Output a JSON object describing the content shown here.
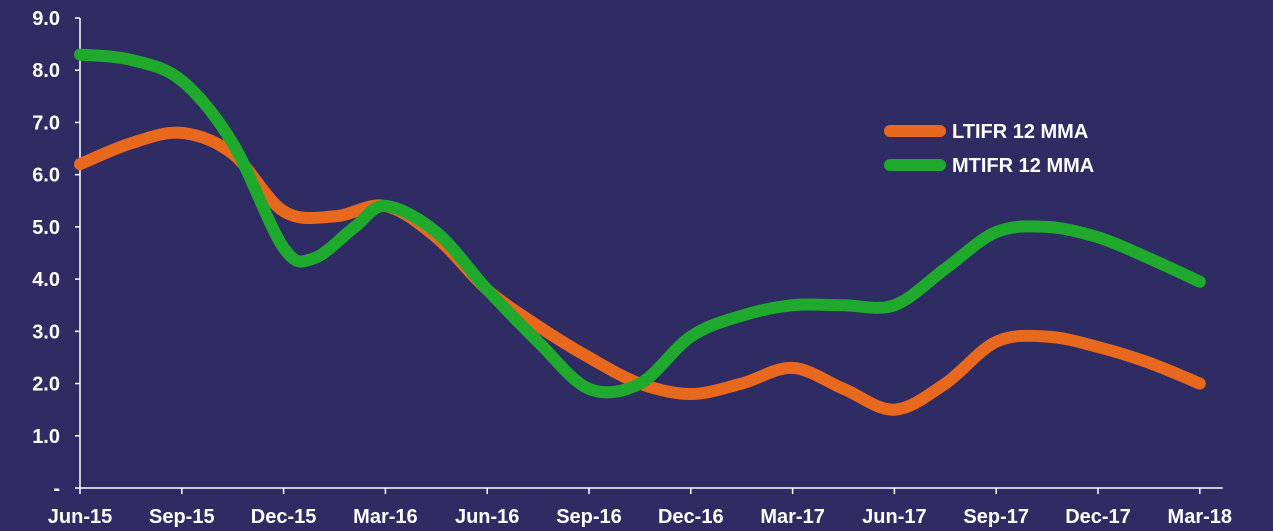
{
  "chart_data": {
    "type": "line",
    "title": "",
    "xlabel": "",
    "ylabel": "",
    "categories": [
      "Jun-15",
      "Sep-15",
      "Dec-15",
      "Mar-16",
      "Jun-16",
      "Sep-16",
      "Dec-16",
      "Mar-17",
      "Jun-17",
      "Sep-17",
      "Dec-17",
      "Mar-18"
    ],
    "y_ticks": [
      "-",
      "1.0",
      "2.0",
      "3.0",
      "4.0",
      "5.0",
      "6.0",
      "7.0",
      "8.0",
      "9.0"
    ],
    "ylim": [
      0,
      9
    ],
    "grid": false,
    "legend_position": "right",
    "series": [
      {
        "name": "LTIFR 12 MMA",
        "color": "#e8691e",
        "points": [
          [
            0,
            6.2
          ],
          [
            0.5,
            6.6
          ],
          [
            1.0,
            6.8
          ],
          [
            1.5,
            6.4
          ],
          [
            2.0,
            5.3
          ],
          [
            2.5,
            5.2
          ],
          [
            3.0,
            5.4
          ],
          [
            3.5,
            4.8
          ],
          [
            4.0,
            3.8
          ],
          [
            4.5,
            3.1
          ],
          [
            5.0,
            2.5
          ],
          [
            5.5,
            2.0
          ],
          [
            6.0,
            1.8
          ],
          [
            6.5,
            2.0
          ],
          [
            7.0,
            2.3
          ],
          [
            7.5,
            1.9
          ],
          [
            8.0,
            1.5
          ],
          [
            8.5,
            2.0
          ],
          [
            9.0,
            2.8
          ],
          [
            9.5,
            2.9
          ],
          [
            10.0,
            2.7
          ],
          [
            10.5,
            2.4
          ],
          [
            11.0,
            2.0
          ]
        ]
      },
      {
        "name": "MTIFR 12 MMA",
        "color": "#1faa2e",
        "points": [
          [
            0,
            8.3
          ],
          [
            0.5,
            8.2
          ],
          [
            1.0,
            7.8
          ],
          [
            1.5,
            6.6
          ],
          [
            2.0,
            4.6
          ],
          [
            2.3,
            4.4
          ],
          [
            2.7,
            5.0
          ],
          [
            3.0,
            5.4
          ],
          [
            3.5,
            4.9
          ],
          [
            4.0,
            3.8
          ],
          [
            4.5,
            2.8
          ],
          [
            5.0,
            1.9
          ],
          [
            5.5,
            2.0
          ],
          [
            6.0,
            2.9
          ],
          [
            6.5,
            3.3
          ],
          [
            7.0,
            3.5
          ],
          [
            7.5,
            3.5
          ],
          [
            8.0,
            3.5
          ],
          [
            8.5,
            4.2
          ],
          [
            9.0,
            4.9
          ],
          [
            9.5,
            5.0
          ],
          [
            10.0,
            4.8
          ],
          [
            10.5,
            4.4
          ],
          [
            11.0,
            3.95
          ]
        ]
      }
    ]
  }
}
